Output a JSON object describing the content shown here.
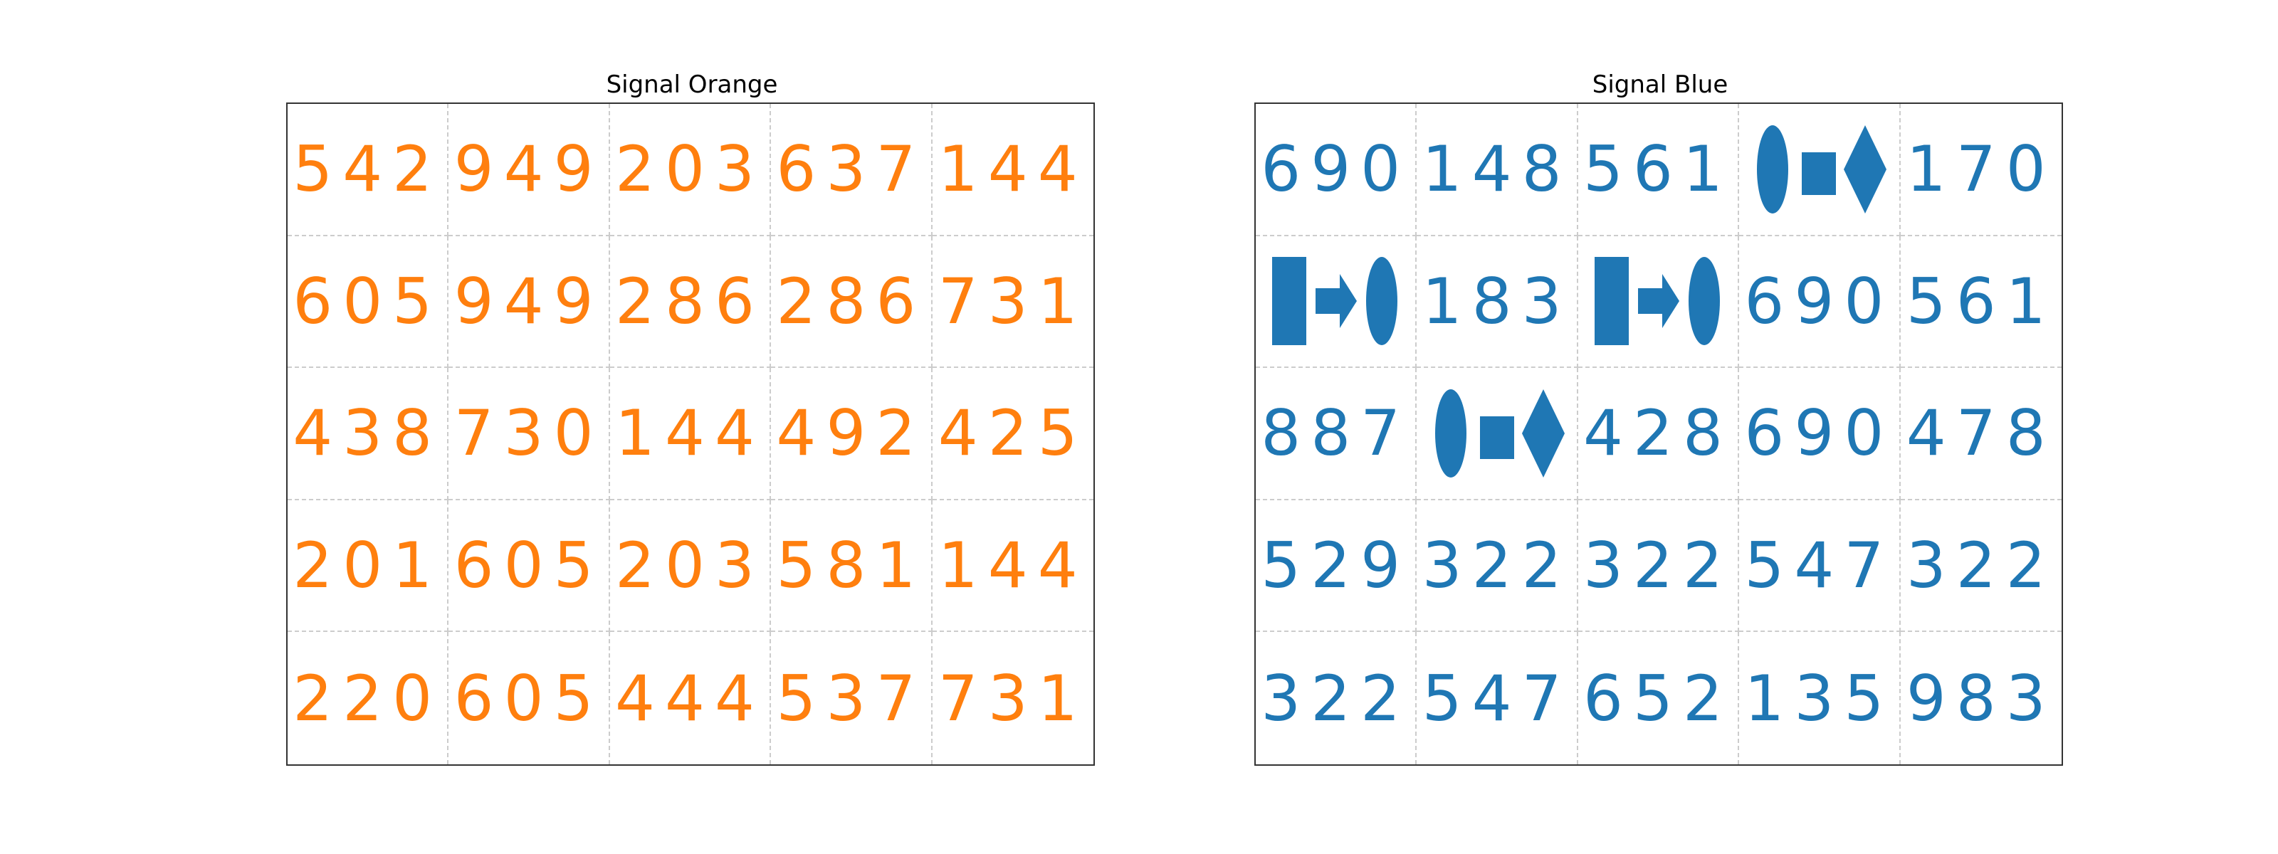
{
  "panels": [
    {
      "title": "Signal Orange",
      "color": "#ff7f0e",
      "cells": [
        [
          "542",
          "949",
          "203",
          "637",
          "144"
        ],
        [
          "605",
          "949",
          "286",
          "286",
          "731"
        ],
        [
          "438",
          "730",
          "144",
          "492",
          "425"
        ],
        [
          "201",
          "605",
          "203",
          "581",
          "144"
        ],
        [
          "220",
          "605",
          "444",
          "537",
          "731"
        ]
      ]
    },
    {
      "title": "Signal Blue",
      "color": "#1f77b4",
      "cells": [
        [
          "690",
          "148",
          "561",
          {
            "glyph": [
              "ellipse",
              "square",
              "diamond"
            ]
          },
          "170"
        ],
        [
          {
            "glyph": [
              "rectangle",
              "arrow",
              "ellipse"
            ]
          },
          "183",
          {
            "glyph": [
              "rectangle",
              "arrow",
              "ellipse"
            ]
          },
          "690",
          "561"
        ],
        [
          "887",
          {
            "glyph": [
              "ellipse",
              "square",
              "diamond"
            ]
          },
          "428",
          "690",
          "478"
        ],
        [
          "529",
          "322",
          "322",
          "547",
          "322"
        ],
        [
          "322",
          "547",
          "652",
          "135",
          "983"
        ]
      ]
    }
  ]
}
